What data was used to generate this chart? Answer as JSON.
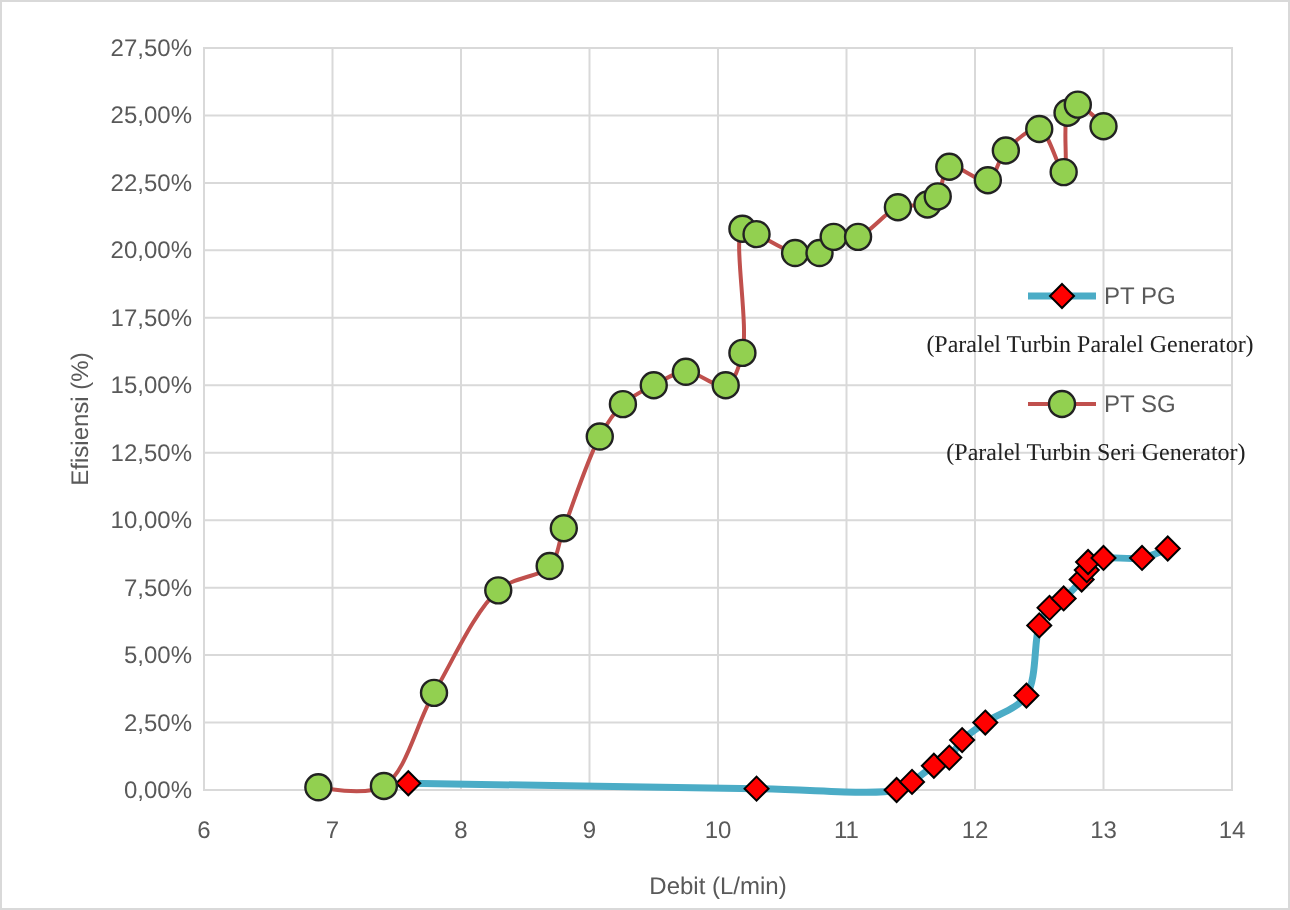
{
  "chart_data": {
    "type": "line",
    "xlabel": "Debit (L/min)",
    "ylabel": "Efisiensi (%)",
    "xlim": [
      6,
      14
    ],
    "xticks": [
      6,
      7,
      8,
      9,
      10,
      11,
      12,
      13,
      14
    ],
    "ylim": [
      0,
      27.5
    ],
    "yticks": [
      {
        "value": 0,
        "label": "0,00%"
      },
      {
        "value": 2.5,
        "label": "2,50%"
      },
      {
        "value": 5,
        "label": "5,00%"
      },
      {
        "value": 7.5,
        "label": "7,50%"
      },
      {
        "value": 10,
        "label": "10,00%"
      },
      {
        "value": 12.5,
        "label": "12,50%"
      },
      {
        "value": 15,
        "label": "15,00%"
      },
      {
        "value": 17.5,
        "label": "17,50%"
      },
      {
        "value": 20,
        "label": "20,00%"
      },
      {
        "value": 22.5,
        "label": "22,50%"
      },
      {
        "value": 25,
        "label": "25,00%"
      },
      {
        "value": 27.5,
        "label": "27,50%"
      }
    ],
    "grid": true,
    "legend": "right",
    "annotations": [
      "(Paralel Turbin Paralel Generator)",
      "(Paralel Turbin Seri Generator)"
    ],
    "series": [
      {
        "name": "PT PG",
        "color": "#4bacc6",
        "marker": "diamond",
        "x": [
          7.59,
          10.3,
          11.39,
          11.51,
          11.68,
          11.8,
          11.9,
          12.08,
          12.4,
          12.5,
          12.58,
          12.69,
          12.79,
          12.83,
          12.87,
          12.88,
          13.0,
          13.3,
          13.5
        ],
        "values": [
          0.25,
          0.05,
          0,
          0.3,
          0.9,
          1.2,
          1.85,
          2.5,
          3.5,
          6.1,
          6.75,
          7.1,
          null,
          7.8,
          8.15,
          8.45,
          8.6,
          8.6,
          8.95
        ]
      },
      {
        "name": "PT SG",
        "color": "#c0504d",
        "marker": "circle",
        "x": [
          6.89,
          7.4,
          7.79,
          8.29,
          8.69,
          8.8,
          9.08,
          9.26,
          9.5,
          9.75,
          10.06,
          10.19,
          10.19,
          10.3,
          10.6,
          10.79,
          10.9,
          11.09,
          11.4,
          11.63,
          11.71,
          11.8,
          12.1,
          12.24,
          12.5,
          12.69,
          12.72,
          12.8,
          13.0
        ],
        "values": [
          0.1,
          0.15,
          3.6,
          7.4,
          8.3,
          9.7,
          13.1,
          14.3,
          15.0,
          15.5,
          15.0,
          16.2,
          20.8,
          20.6,
          19.9,
          19.9,
          20.5,
          20.5,
          21.6,
          21.7,
          22.0,
          23.1,
          22.6,
          23.7,
          24.5,
          22.9,
          25.1,
          25.4,
          24.6
        ]
      }
    ]
  }
}
